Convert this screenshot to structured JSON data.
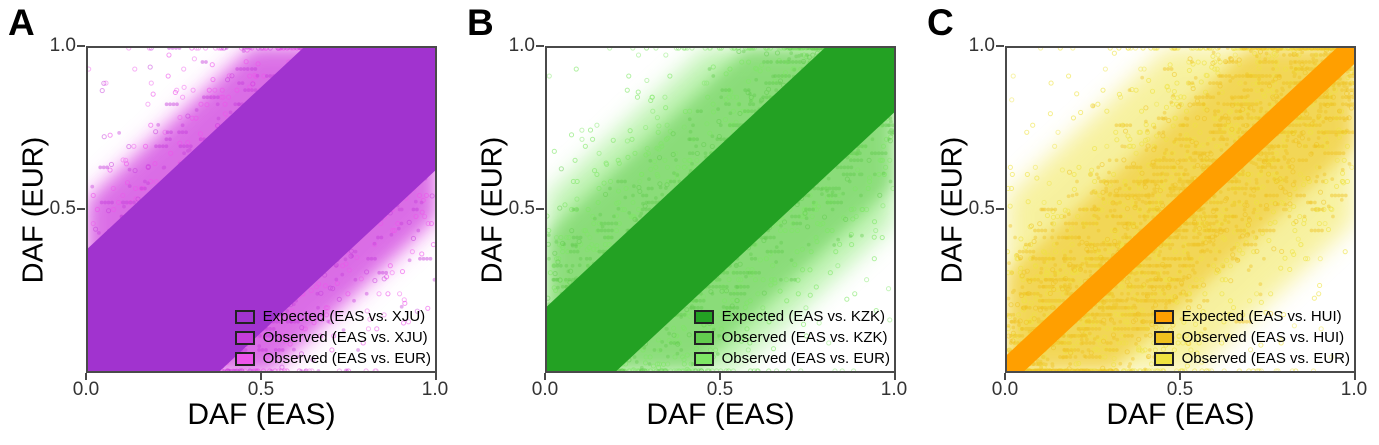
{
  "figure": {
    "background": "#ffffff",
    "axis_color": "#4a4a4a",
    "tick_label_color": "#333333",
    "text_color": "#000000"
  },
  "chart_data": [
    {
      "type": "scatter",
      "panel_label": "A",
      "xlabel": "DAF (EAS)",
      "ylabel": "DAF (EUR)",
      "xlim": [
        0,
        1
      ],
      "ylim": [
        0,
        1
      ],
      "xticks": [
        {
          "v": 0.0,
          "label": "0.0"
        },
        {
          "v": 0.5,
          "label": "0.5"
        },
        {
          "v": 1.0,
          "label": "1.0"
        }
      ],
      "yticks": [
        {
          "v": 1.0,
          "label": "1.0"
        },
        {
          "v": 0.5,
          "label": "0.5"
        }
      ],
      "grid": false,
      "legend_position": "bottom-right",
      "series": [
        {
          "name": "Expected (EAS vs. XJU)",
          "style": "solid-band",
          "color": "#A133CF",
          "band_half_width": 0.38
        },
        {
          "name": "Observed (EAS vs. XJU)",
          "style": "points",
          "color": "#C43CDA",
          "approx_sd": 0.24
        },
        {
          "name": "Observed (EAS vs. EUR)",
          "style": "points",
          "color": "#EE55EB",
          "approx_sd": 0.3
        }
      ]
    },
    {
      "type": "scatter",
      "panel_label": "B",
      "xlabel": "DAF (EAS)",
      "ylabel": "DAF (EUR)",
      "xlim": [
        0,
        1
      ],
      "ylim": [
        0,
        1
      ],
      "xticks": [
        {
          "v": 0.0,
          "label": "0.0"
        },
        {
          "v": 0.5,
          "label": "0.5"
        },
        {
          "v": 1.0,
          "label": "1.0"
        }
      ],
      "yticks": [
        {
          "v": 1.0,
          "label": "1.0"
        },
        {
          "v": 0.5,
          "label": "0.5"
        }
      ],
      "grid": false,
      "legend_position": "bottom-right",
      "series": [
        {
          "name": "Expected (EAS vs. KZK)",
          "style": "solid-band",
          "color": "#23A123",
          "band_half_width": 0.2
        },
        {
          "name": "Observed (EAS vs. KZK)",
          "style": "points",
          "color": "#62CB4E",
          "approx_sd": 0.16
        },
        {
          "name": "Observed (EAS vs. EUR)",
          "style": "points",
          "color": "#7EE765",
          "approx_sd": 0.3
        }
      ]
    },
    {
      "type": "scatter",
      "panel_label": "C",
      "xlabel": "DAF (EAS)",
      "ylabel": "DAF (EUR)",
      "xlim": [
        0,
        1
      ],
      "ylim": [
        0,
        1
      ],
      "xticks": [
        {
          "v": 0.0,
          "label": "0.0"
        },
        {
          "v": 0.5,
          "label": "0.5"
        },
        {
          "v": 1.0,
          "label": "1.0"
        }
      ],
      "yticks": [
        {
          "v": 1.0,
          "label": "1.0"
        },
        {
          "v": 0.5,
          "label": "0.5"
        }
      ],
      "grid": false,
      "legend_position": "bottom-right",
      "series": [
        {
          "name": "Expected (EAS vs. HUI)",
          "style": "solid-band",
          "color": "#FF9F00",
          "band_half_width": 0.05
        },
        {
          "name": "Observed (EAS vs. HUI)",
          "style": "points",
          "color": "#EFC11E",
          "approx_sd": 0.18
        },
        {
          "name": "Observed (EAS vs. EUR)",
          "style": "points",
          "color": "#EFE340",
          "approx_sd": 0.3
        }
      ]
    }
  ]
}
